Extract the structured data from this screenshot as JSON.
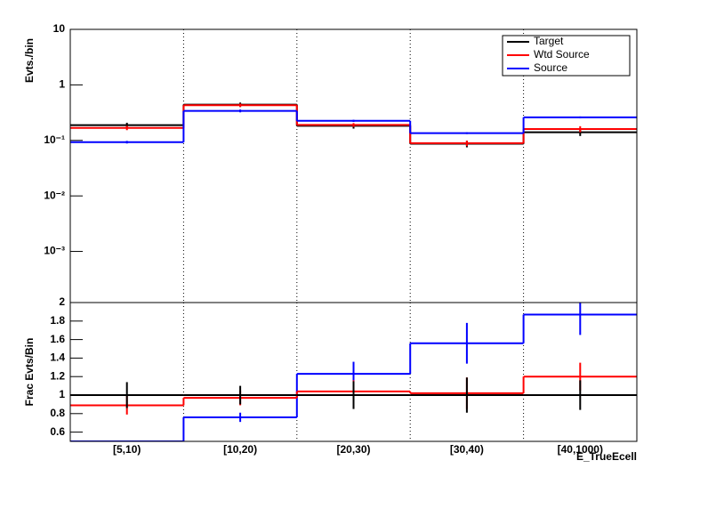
{
  "chart_data": [
    {
      "type": "step",
      "y_label": "Evts./bin",
      "log_y": true,
      "ylim": [
        0.00012,
        10
      ],
      "yticks": [
        10,
        1,
        {
          "value": 0.1,
          "label": "10⁻¹"
        },
        {
          "value": 0.01,
          "label": "10⁻²"
        },
        {
          "value": 0.001,
          "label": "10⁻³"
        }
      ],
      "grid_x": true,
      "legend": "top-right",
      "series": [
        {
          "name": "Target",
          "color": "#000000",
          "values": [
            0.188,
            0.44,
            0.183,
            0.087,
            0.14
          ],
          "errors": [
            0.02,
            0.04,
            0.02,
            0.012,
            0.02
          ]
        },
        {
          "name": "Wtd Source",
          "color": "#ff0000",
          "values": [
            0.168,
            0.43,
            0.19,
            0.089,
            0.16
          ],
          "errors": [
            0.015,
            0.03,
            0.015,
            0.01,
            0.02
          ]
        },
        {
          "name": "Source",
          "color": "#0000ff",
          "values": [
            0.093,
            0.34,
            0.225,
            0.135,
            0.26
          ],
          "errors": [
            0.005,
            0.02,
            0.01,
            0.005,
            0.01
          ]
        }
      ]
    },
    {
      "type": "step",
      "y_label": "Frac Evts/Bin",
      "x_label": "E_TrueEcell",
      "categories": [
        "[5,10)",
        "[10,20)",
        "[20,30)",
        "[30,40)",
        "[40,1000)"
      ],
      "ylim": [
        0.5,
        2
      ],
      "yticks": [
        0.6,
        0.8,
        1,
        1.2,
        1.4,
        1.6,
        1.8,
        2
      ],
      "grid_x": true,
      "series": [
        {
          "color": "#0000ff",
          "values": [
            0.5,
            0.76,
            1.23,
            1.56,
            1.87
          ],
          "errors": [
            0,
            0.05,
            0.13,
            0.22,
            0.22
          ]
        },
        {
          "color": "#ff0000",
          "values": [
            0.89,
            0.97,
            1.04,
            1.02,
            1.2
          ],
          "errors": [
            0.1,
            0.08,
            0.12,
            0.17,
            0.15
          ]
        },
        {
          "color": "#000000",
          "values": [
            1,
            1,
            1,
            1,
            1
          ],
          "errors": [
            0.14,
            0.1,
            0.15,
            0.19,
            0.16
          ]
        }
      ]
    }
  ]
}
